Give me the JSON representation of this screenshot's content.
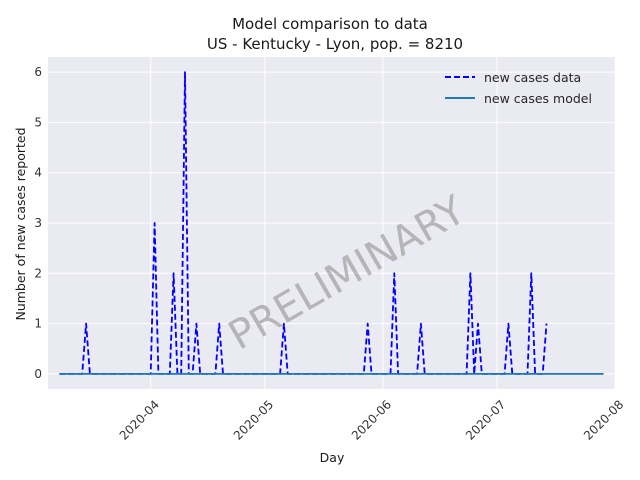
{
  "chart_data": {
    "type": "line",
    "title": "Model comparison to data",
    "subtitle": "US - Kentucky - Lyon, pop. = 8210",
    "xlabel": "Day",
    "ylabel": "Number of new cases reported",
    "x_start": "2020-03-08",
    "x_end": "2020-07-29",
    "xlim": [
      "2020-03-05",
      "2020-08-01"
    ],
    "ylim": [
      -0.3,
      6.3
    ],
    "x_ticks": [
      "2020-04",
      "2020-05",
      "2020-06",
      "2020-07",
      "2020-08"
    ],
    "y_ticks": [
      "0",
      "1",
      "2",
      "3",
      "4",
      "5",
      "6"
    ],
    "grid": true,
    "legend_position": "top-right",
    "watermark": "PRELIMINARY",
    "series": [
      {
        "name": "new cases data",
        "style": "dashed",
        "color": "#0000ff",
        "data_end": "2020-07-14",
        "points": [
          [
            "2020-03-15",
            1
          ],
          [
            "2020-04-02",
            3
          ],
          [
            "2020-04-07",
            2
          ],
          [
            "2020-04-10",
            6
          ],
          [
            "2020-04-13",
            1
          ],
          [
            "2020-04-19",
            1
          ],
          [
            "2020-05-06",
            1
          ],
          [
            "2020-05-28",
            1
          ],
          [
            "2020-06-04",
            2
          ],
          [
            "2020-06-11",
            1
          ],
          [
            "2020-06-24",
            2
          ],
          [
            "2020-06-26",
            1
          ],
          [
            "2020-07-04",
            1
          ],
          [
            "2020-07-10",
            2
          ],
          [
            "2020-07-14",
            1
          ]
        ]
      },
      {
        "name": "new cases model",
        "style": "solid",
        "color": "#1f77b4",
        "constant_value": 0
      }
    ]
  }
}
